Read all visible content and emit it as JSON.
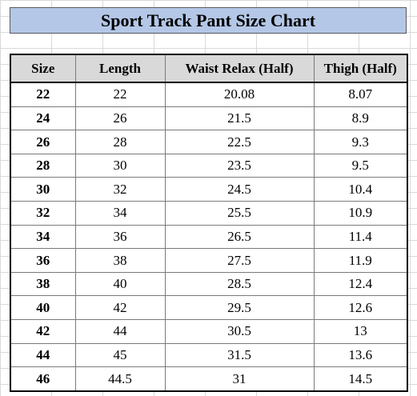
{
  "title": "Sport Track Pant Size Chart",
  "table": {
    "headers": [
      "Size",
      "Length",
      "Waist Relax (Half)",
      "Thigh (Half)"
    ],
    "rows": [
      [
        "22",
        "22",
        "20.08",
        "8.07"
      ],
      [
        "24",
        "26",
        "21.5",
        "8.9"
      ],
      [
        "26",
        "28",
        "22.5",
        "9.3"
      ],
      [
        "28",
        "30",
        "23.5",
        "9.5"
      ],
      [
        "30",
        "32",
        "24.5",
        "10.4"
      ],
      [
        "32",
        "34",
        "25.5",
        "10.9"
      ],
      [
        "34",
        "36",
        "26.5",
        "11.4"
      ],
      [
        "36",
        "38",
        "27.5",
        "11.9"
      ],
      [
        "38",
        "40",
        "28.5",
        "12.4"
      ],
      [
        "40",
        "42",
        "29.5",
        "12.6"
      ],
      [
        "42",
        "44",
        "30.5",
        "13"
      ],
      [
        "44",
        "45",
        "31.5",
        "13.6"
      ],
      [
        "46",
        "44.5",
        "31",
        "14.5"
      ]
    ]
  },
  "colors": {
    "title_background": "#b4c7e7",
    "header_background": "#d9d9d9",
    "gridline": "#d9d9d9"
  }
}
